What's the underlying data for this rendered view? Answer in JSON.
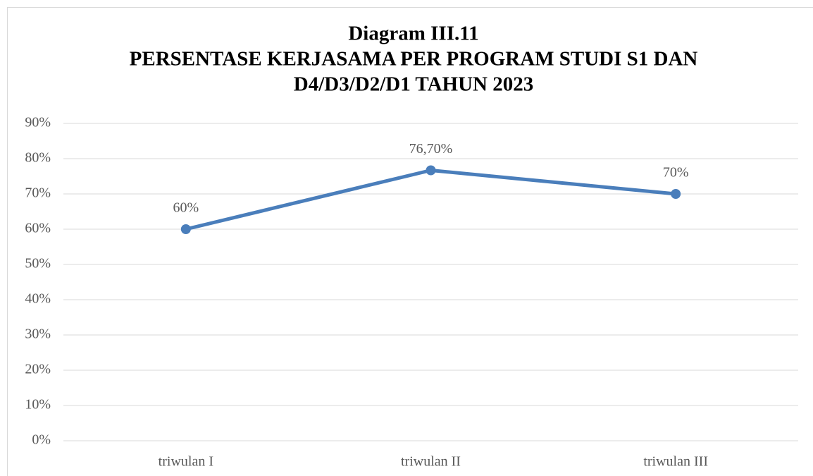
{
  "chart_data": {
    "type": "line",
    "title": [
      "Diagram III.11",
      "PERSENTASE KERJASAMA PER PROGRAM STUDI S1 DAN",
      "D4/D3/D2/D1 TAHUN 2023"
    ],
    "categories": [
      "triwulan I",
      "triwulan II",
      "triwulan III"
    ],
    "values": [
      60,
      76.7,
      70
    ],
    "value_labels": [
      "60%",
      "76,70%",
      "70%"
    ],
    "color": "#4a7ebb",
    "ylim": [
      0,
      90
    ],
    "yticks": [
      {
        "value": 0,
        "label": "0%"
      },
      {
        "value": 10,
        "label": "10%"
      },
      {
        "value": 20,
        "label": "20%"
      },
      {
        "value": 30,
        "label": "30%"
      },
      {
        "value": 40,
        "label": "40%"
      },
      {
        "value": 50,
        "label": "50%"
      },
      {
        "value": 60,
        "label": "60%"
      },
      {
        "value": 70,
        "label": "70%"
      },
      {
        "value": 80,
        "label": "80%"
      },
      {
        "value": 90,
        "label": "90%"
      }
    ],
    "grid": true
  }
}
